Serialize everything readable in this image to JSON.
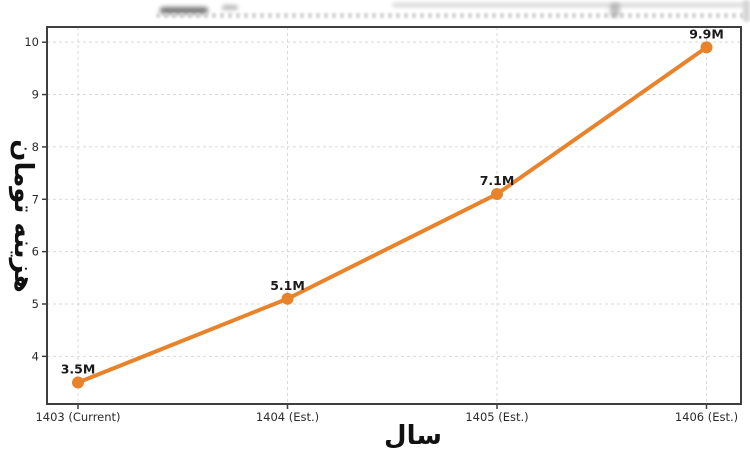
{
  "chart_data": {
    "type": "line",
    "title_illegible": true,
    "categories": [
      "1403 (Current)",
      "1404 (Est.)",
      "1405 (Est.)",
      "1406 (Est.)"
    ],
    "values": [
      3.5,
      5.1,
      7.1,
      9.9
    ],
    "point_labels": [
      "3.5M",
      "5.1M",
      "7.1M",
      "9.9M"
    ],
    "xlabel": "سال",
    "ylabel": "هزینه تومان",
    "y_ticks": [
      4,
      5,
      6,
      7,
      8,
      9,
      10
    ],
    "ylim": [
      3.09,
      10.29
    ],
    "grid": true,
    "grid_style": "dashed",
    "legend": false,
    "colors": {
      "line": "#E8832C",
      "marker": "#E8832C",
      "axis": "#3F3F3F",
      "grid": "#D9D9D9",
      "tick_text": "#2B2B2B",
      "label_text": "#1A1A1A"
    }
  }
}
